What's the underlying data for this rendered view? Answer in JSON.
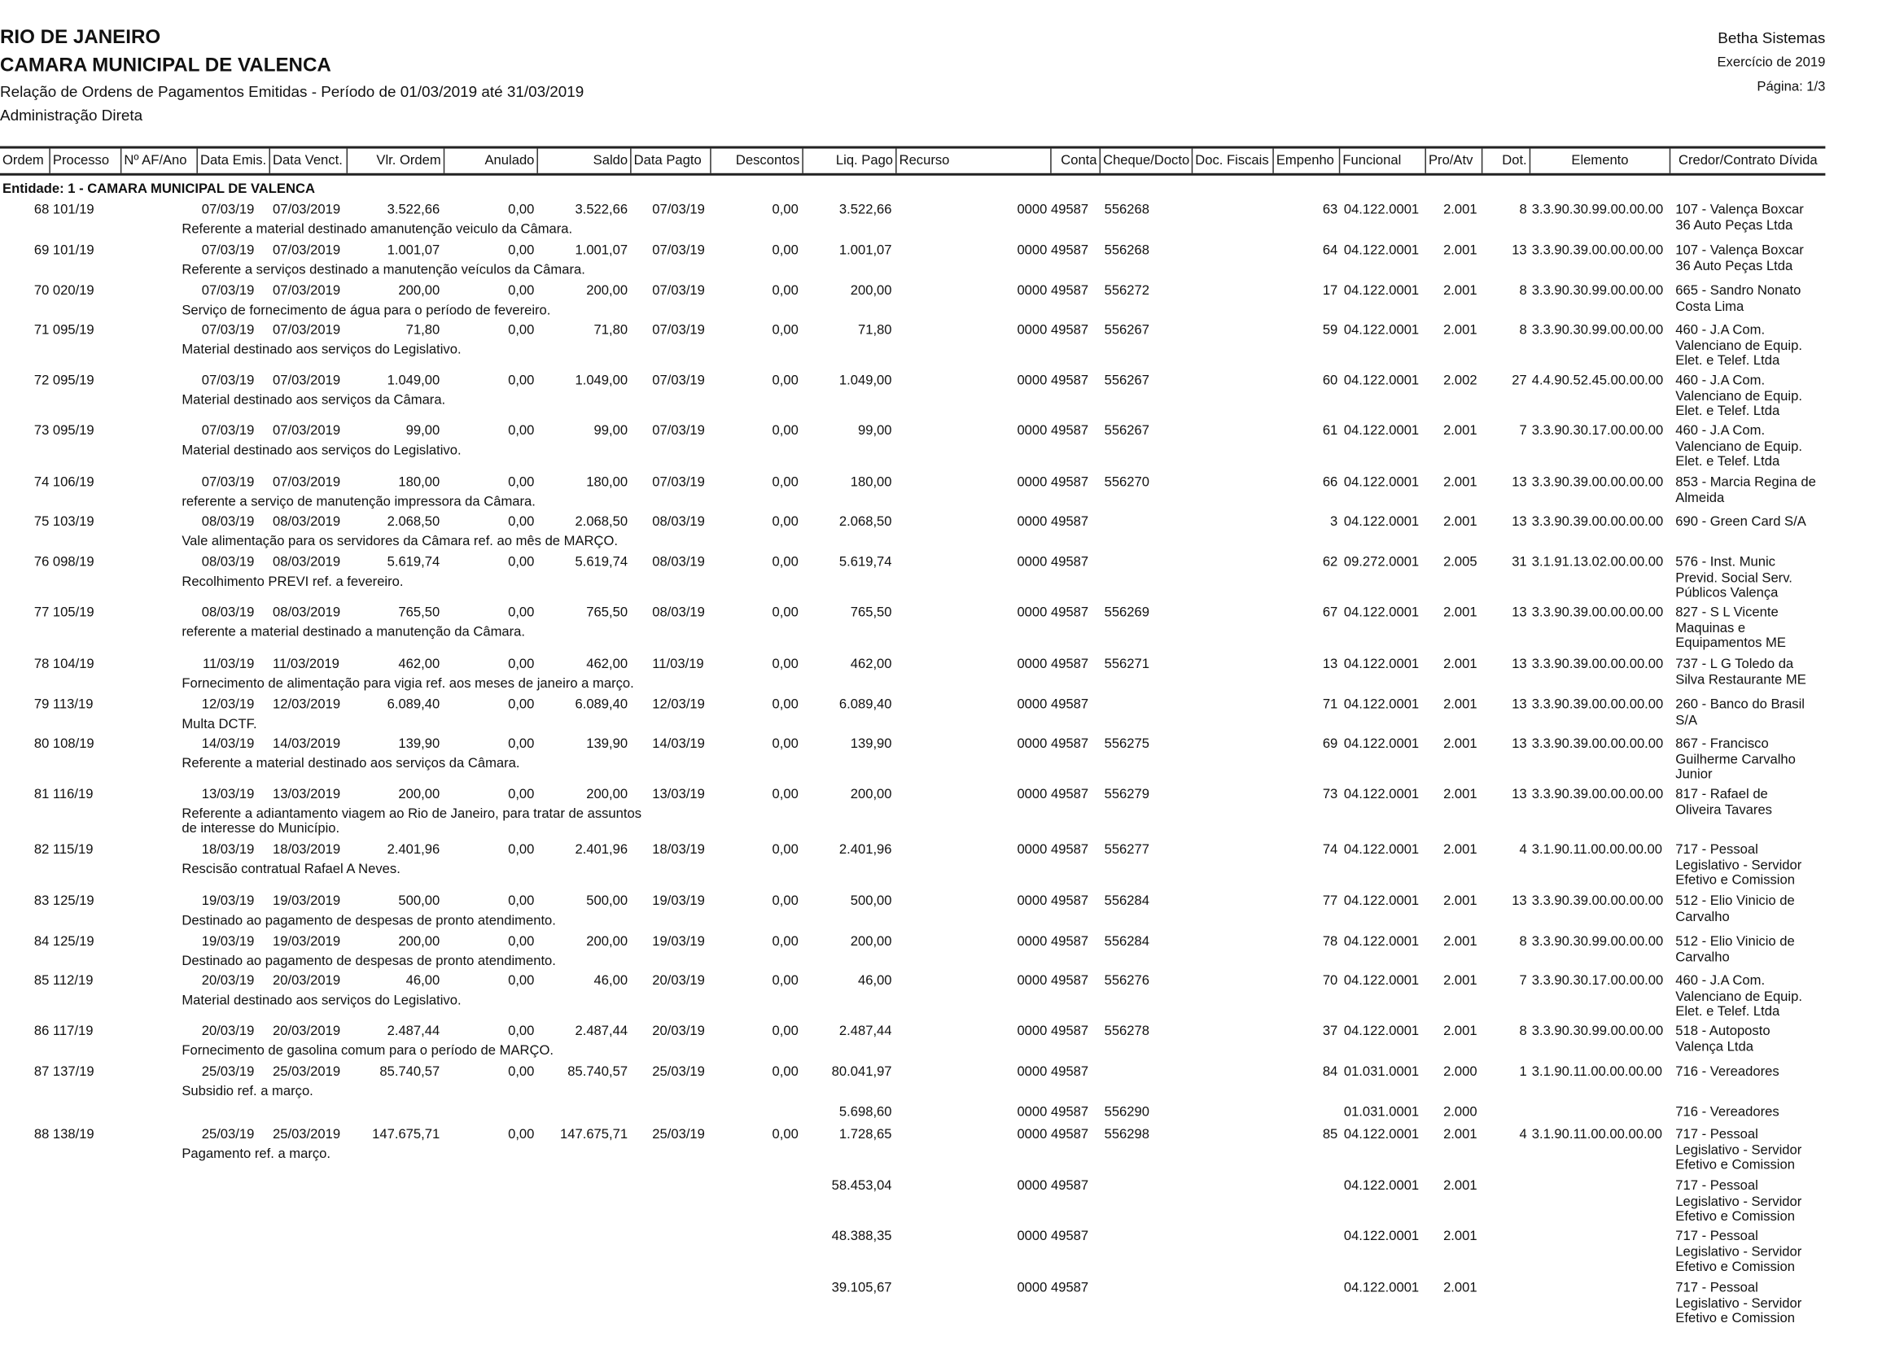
{
  "header": {
    "state": "RIO DE JANEIRO",
    "entity": "CAMARA MUNICIPAL DE VALENCA",
    "report_title": "Relação de Ordens de Pagamentos Emitidas - Período de 01/03/2019 até 31/03/2019",
    "administration": "Administração Direta",
    "system": "Betha Sistemas",
    "exercise": "Exercício de 2019",
    "page": "Página: 1/3"
  },
  "columns": [
    "Ordem",
    "Processo",
    "Nº AF/Ano",
    "Data Emis.",
    "Data Venct.",
    "Vlr. Ordem",
    "Anulado",
    "Saldo",
    "Data Pagto",
    "Descontos",
    "Liq. Pago",
    "Recurso",
    "Conta",
    "Cheque/Docto",
    "Doc. Fiscais",
    "Empenho",
    "Funcional",
    "Pro/Atv",
    "Dot.",
    "Elemento",
    "Credor/Contrato Dívida"
  ],
  "entity_group": "Entidade: 1 - CAMARA MUNICIPAL DE VALENCA",
  "rows": [
    {
      "ordem": "68",
      "processo": "101/19",
      "data_emis": "07/03/19",
      "data_venc": "07/03/2019",
      "vlr_ordem": "3.522,66",
      "anulado": "0,00",
      "saldo": "3.522,66",
      "data_pagto": "07/03/19",
      "descontos": "0,00",
      "liq_pago": "3.522,66",
      "conta": "0000 49587",
      "cheque": "556268",
      "empenho": "63",
      "funcional": "04.122.0001",
      "pro_atv": "2.001",
      "dot": "8",
      "elemento": "3.3.90.30.99.00.00.00",
      "credor": [
        "107 - Valença Boxcar",
        "36 Auto Peças Ltda"
      ],
      "desc": [
        "Referente a material destinado amanutenção veiculo da Câmara."
      ]
    },
    {
      "ordem": "69",
      "processo": "101/19",
      "data_emis": "07/03/19",
      "data_venc": "07/03/2019",
      "vlr_ordem": "1.001,07",
      "anulado": "0,00",
      "saldo": "1.001,07",
      "data_pagto": "07/03/19",
      "descontos": "0,00",
      "liq_pago": "1.001,07",
      "conta": "0000 49587",
      "cheque": "556268",
      "empenho": "64",
      "funcional": "04.122.0001",
      "pro_atv": "2.001",
      "dot": "13",
      "elemento": "3.3.90.39.00.00.00.00",
      "credor": [
        "107 - Valença Boxcar",
        "36 Auto Peças Ltda"
      ],
      "desc": [
        "Referente a serviços destinado a manutenção veículos da Câmara."
      ]
    },
    {
      "ordem": "70",
      "processo": "020/19",
      "data_emis": "07/03/19",
      "data_venc": "07/03/2019",
      "vlr_ordem": "200,00",
      "anulado": "0,00",
      "saldo": "200,00",
      "data_pagto": "07/03/19",
      "descontos": "0,00",
      "liq_pago": "200,00",
      "conta": "0000 49587",
      "cheque": "556272",
      "empenho": "17",
      "funcional": "04.122.0001",
      "pro_atv": "2.001",
      "dot": "8",
      "elemento": "3.3.90.30.99.00.00.00",
      "credor": [
        "665 - Sandro Nonato",
        "Costa Lima"
      ],
      "desc": [
        "Serviço de fornecimento de água para o período de fevereiro."
      ]
    },
    {
      "ordem": "71",
      "processo": "095/19",
      "data_emis": "07/03/19",
      "data_venc": "07/03/2019",
      "vlr_ordem": "71,80",
      "anulado": "0,00",
      "saldo": "71,80",
      "data_pagto": "07/03/19",
      "descontos": "0,00",
      "liq_pago": "71,80",
      "conta": "0000 49587",
      "cheque": "556267",
      "empenho": "59",
      "funcional": "04.122.0001",
      "pro_atv": "2.001",
      "dot": "8",
      "elemento": "3.3.90.30.99.00.00.00",
      "credor": [
        "460 - J.A Com.",
        "Valenciano de Equip.",
        "Elet. e Telef. Ltda"
      ],
      "desc": [
        "Material destinado aos serviços do Legislativo."
      ]
    },
    {
      "ordem": "72",
      "processo": "095/19",
      "data_emis": "07/03/19",
      "data_venc": "07/03/2019",
      "vlr_ordem": "1.049,00",
      "anulado": "0,00",
      "saldo": "1.049,00",
      "data_pagto": "07/03/19",
      "descontos": "0,00",
      "liq_pago": "1.049,00",
      "conta": "0000 49587",
      "cheque": "556267",
      "empenho": "60",
      "funcional": "04.122.0001",
      "pro_atv": "2.002",
      "dot": "27",
      "elemento": "4.4.90.52.45.00.00.00",
      "credor": [
        "460 - J.A Com.",
        "Valenciano de Equip.",
        "Elet. e Telef. Ltda"
      ],
      "desc": [
        "Material destinado aos serviços da Câmara."
      ]
    },
    {
      "ordem": "73",
      "processo": "095/19",
      "data_emis": "07/03/19",
      "data_venc": "07/03/2019",
      "vlr_ordem": "99,00",
      "anulado": "0,00",
      "saldo": "99,00",
      "data_pagto": "07/03/19",
      "descontos": "0,00",
      "liq_pago": "99,00",
      "conta": "0000 49587",
      "cheque": "556267",
      "empenho": "61",
      "funcional": "04.122.0001",
      "pro_atv": "2.001",
      "dot": "7",
      "elemento": "3.3.90.30.17.00.00.00",
      "credor": [
        "460 - J.A Com.",
        "Valenciano de Equip.",
        "Elet. e Telef. Ltda"
      ],
      "desc": [
        "Material destinado aos serviços do Legislativo."
      ]
    },
    {
      "ordem": "74",
      "processo": "106/19",
      "data_emis": "07/03/19",
      "data_venc": "07/03/2019",
      "vlr_ordem": "180,00",
      "anulado": "0,00",
      "saldo": "180,00",
      "data_pagto": "07/03/19",
      "descontos": "0,00",
      "liq_pago": "180,00",
      "conta": "0000 49587",
      "cheque": "556270",
      "empenho": "66",
      "funcional": "04.122.0001",
      "pro_atv": "2.001",
      "dot": "13",
      "elemento": "3.3.90.39.00.00.00.00",
      "credor": [
        "853 - Marcia Regina de",
        "Almeida"
      ],
      "desc": [
        "referente a serviço de manutenção impressora da Câmara."
      ]
    },
    {
      "ordem": "75",
      "processo": "103/19",
      "data_emis": "08/03/19",
      "data_venc": "08/03/2019",
      "vlr_ordem": "2.068,50",
      "anulado": "0,00",
      "saldo": "2.068,50",
      "data_pagto": "08/03/19",
      "descontos": "0,00",
      "liq_pago": "2.068,50",
      "conta": "0000 49587",
      "cheque": "",
      "empenho": "3",
      "funcional": "04.122.0001",
      "pro_atv": "2.001",
      "dot": "13",
      "elemento": "3.3.90.39.00.00.00.00",
      "credor": [
        "690 - Green Card S/A"
      ],
      "desc": [
        "Vale alimentação para os servidores da Câmara ref. ao mês de MARÇO."
      ]
    },
    {
      "ordem": "76",
      "processo": "098/19",
      "data_emis": "08/03/19",
      "data_venc": "08/03/2019",
      "vlr_ordem": "5.619,74",
      "anulado": "0,00",
      "saldo": "5.619,74",
      "data_pagto": "08/03/19",
      "descontos": "0,00",
      "liq_pago": "5.619,74",
      "conta": "0000 49587",
      "cheque": "",
      "empenho": "62",
      "funcional": "09.272.0001",
      "pro_atv": "2.005",
      "dot": "31",
      "elemento": "3.1.91.13.02.00.00.00",
      "credor": [
        "576 - Inst. Munic",
        "Previd. Social Serv.",
        "Públicos Valença"
      ],
      "desc": [
        "Recolhimento PREVI ref. a fevereiro."
      ]
    },
    {
      "ordem": "77",
      "processo": "105/19",
      "data_emis": "08/03/19",
      "data_venc": "08/03/2019",
      "vlr_ordem": "765,50",
      "anulado": "0,00",
      "saldo": "765,50",
      "data_pagto": "08/03/19",
      "descontos": "0,00",
      "liq_pago": "765,50",
      "conta": "0000 49587",
      "cheque": "556269",
      "empenho": "67",
      "funcional": "04.122.0001",
      "pro_atv": "2.001",
      "dot": "13",
      "elemento": "3.3.90.39.00.00.00.00",
      "credor": [
        "827 - S L Vicente",
        "Maquinas e",
        "Equipamentos ME"
      ],
      "desc": [
        "referente a material destinado a manutenção da Câmara."
      ]
    },
    {
      "ordem": "78",
      "processo": "104/19",
      "data_emis": "11/03/19",
      "data_venc": "11/03/2019",
      "vlr_ordem": "462,00",
      "anulado": "0,00",
      "saldo": "462,00",
      "data_pagto": "11/03/19",
      "descontos": "0,00",
      "liq_pago": "462,00",
      "conta": "0000 49587",
      "cheque": "556271",
      "empenho": "13",
      "funcional": "04.122.0001",
      "pro_atv": "2.001",
      "dot": "13",
      "elemento": "3.3.90.39.00.00.00.00",
      "credor": [
        "737 - L G Toledo da",
        "Silva Restaurante ME"
      ],
      "desc": [
        "Fornecimento de alimentação para vigia ref. aos meses de janeiro a março."
      ]
    },
    {
      "ordem": "79",
      "processo": "113/19",
      "data_emis": "12/03/19",
      "data_venc": "12/03/2019",
      "vlr_ordem": "6.089,40",
      "anulado": "0,00",
      "saldo": "6.089,40",
      "data_pagto": "12/03/19",
      "descontos": "0,00",
      "liq_pago": "6.089,40",
      "conta": "0000 49587",
      "cheque": "",
      "empenho": "71",
      "funcional": "04.122.0001",
      "pro_atv": "2.001",
      "dot": "13",
      "elemento": "3.3.90.39.00.00.00.00",
      "credor": [
        "260 - Banco do Brasil",
        "S/A"
      ],
      "desc": [
        "Multa DCTF."
      ]
    },
    {
      "ordem": "80",
      "processo": "108/19",
      "data_emis": "14/03/19",
      "data_venc": "14/03/2019",
      "vlr_ordem": "139,90",
      "anulado": "0,00",
      "saldo": "139,90",
      "data_pagto": "14/03/19",
      "descontos": "0,00",
      "liq_pago": "139,90",
      "conta": "0000 49587",
      "cheque": "556275",
      "empenho": "69",
      "funcional": "04.122.0001",
      "pro_atv": "2.001",
      "dot": "13",
      "elemento": "3.3.90.39.00.00.00.00",
      "credor": [
        "867 - Francisco",
        "Guilherme Carvalho",
        "Junior"
      ],
      "desc": [
        "Referente a material destinado aos serviços da Câmara."
      ]
    },
    {
      "ordem": "81",
      "processo": "116/19",
      "data_emis": "13/03/19",
      "data_venc": "13/03/2019",
      "vlr_ordem": "200,00",
      "anulado": "0,00",
      "saldo": "200,00",
      "data_pagto": "13/03/19",
      "descontos": "0,00",
      "liq_pago": "200,00",
      "conta": "0000 49587",
      "cheque": "556279",
      "empenho": "73",
      "funcional": "04.122.0001",
      "pro_atv": "2.001",
      "dot": "13",
      "elemento": "3.3.90.39.00.00.00.00",
      "credor": [
        "817 - Rafael de",
        "Oliveira Tavares"
      ],
      "desc": [
        "Referente a adiantamento viagem ao Rio de Janeiro, para tratar de assuntos",
        "de interesse do Município."
      ]
    },
    {
      "ordem": "82",
      "processo": "115/19",
      "data_emis": "18/03/19",
      "data_venc": "18/03/2019",
      "vlr_ordem": "2.401,96",
      "anulado": "0,00",
      "saldo": "2.401,96",
      "data_pagto": "18/03/19",
      "descontos": "0,00",
      "liq_pago": "2.401,96",
      "conta": "0000 49587",
      "cheque": "556277",
      "empenho": "74",
      "funcional": "04.122.0001",
      "pro_atv": "2.001",
      "dot": "4",
      "elemento": "3.1.90.11.00.00.00.00",
      "credor": [
        "717 - Pessoal",
        "Legislativo - Servidor",
        "Efetivo e Comission"
      ],
      "desc": [
        "Rescisão contratual Rafael A Neves."
      ]
    },
    {
      "ordem": "83",
      "processo": "125/19",
      "data_emis": "19/03/19",
      "data_venc": "19/03/2019",
      "vlr_ordem": "500,00",
      "anulado": "0,00",
      "saldo": "500,00",
      "data_pagto": "19/03/19",
      "descontos": "0,00",
      "liq_pago": "500,00",
      "conta": "0000 49587",
      "cheque": "556284",
      "empenho": "77",
      "funcional": "04.122.0001",
      "pro_atv": "2.001",
      "dot": "13",
      "elemento": "3.3.90.39.00.00.00.00",
      "credor": [
        "512 - Elio Vinicio de",
        "Carvalho"
      ],
      "desc": [
        "Destinado ao pagamento de despesas de pronto atendimento."
      ]
    },
    {
      "ordem": "84",
      "processo": "125/19",
      "data_emis": "19/03/19",
      "data_venc": "19/03/2019",
      "vlr_ordem": "200,00",
      "anulado": "0,00",
      "saldo": "200,00",
      "data_pagto": "19/03/19",
      "descontos": "0,00",
      "liq_pago": "200,00",
      "conta": "0000 49587",
      "cheque": "556284",
      "empenho": "78",
      "funcional": "04.122.0001",
      "pro_atv": "2.001",
      "dot": "8",
      "elemento": "3.3.90.30.99.00.00.00",
      "credor": [
        "512 - Elio Vinicio de",
        "Carvalho"
      ],
      "desc": [
        "Destinado ao pagamento de despesas de pronto atendimento."
      ]
    },
    {
      "ordem": "85",
      "processo": "112/19",
      "data_emis": "20/03/19",
      "data_venc": "20/03/2019",
      "vlr_ordem": "46,00",
      "anulado": "0,00",
      "saldo": "46,00",
      "data_pagto": "20/03/19",
      "descontos": "0,00",
      "liq_pago": "46,00",
      "conta": "0000 49587",
      "cheque": "556276",
      "empenho": "70",
      "funcional": "04.122.0001",
      "pro_atv": "2.001",
      "dot": "7",
      "elemento": "3.3.90.30.17.00.00.00",
      "credor": [
        "460 - J.A Com.",
        "Valenciano de Equip.",
        "Elet. e Telef. Ltda"
      ],
      "desc": [
        "Material destinado aos serviços do Legislativo."
      ]
    },
    {
      "ordem": "86",
      "processo": "117/19",
      "data_emis": "20/03/19",
      "data_venc": "20/03/2019",
      "vlr_ordem": "2.487,44",
      "anulado": "0,00",
      "saldo": "2.487,44",
      "data_pagto": "20/03/19",
      "descontos": "0,00",
      "liq_pago": "2.487,44",
      "conta": "0000 49587",
      "cheque": "556278",
      "empenho": "37",
      "funcional": "04.122.0001",
      "pro_atv": "2.001",
      "dot": "8",
      "elemento": "3.3.90.30.99.00.00.00",
      "credor": [
        "518 - Autoposto",
        "Valença Ltda"
      ],
      "desc": [
        "Fornecimento de gasolina comum para o período de MARÇO."
      ]
    },
    {
      "ordem": "87",
      "processo": "137/19",
      "data_emis": "25/03/19",
      "data_venc": "25/03/2019",
      "vlr_ordem": "85.740,57",
      "anulado": "0,00",
      "saldo": "85.740,57",
      "data_pagto": "25/03/19",
      "descontos": "0,00",
      "liq_pago": "80.041,97",
      "conta": "0000 49587",
      "cheque": "",
      "empenho": "84",
      "funcional": "01.031.0001",
      "pro_atv": "2.000",
      "dot": "1",
      "elemento": "3.1.90.11.00.00.00.00",
      "credor": [
        "716 - Vereadores"
      ],
      "desc": [
        "Subsidio ref. a março."
      ]
    },
    {
      "liq_pago": "5.698,60",
      "conta": "0000 49587",
      "cheque": "556290",
      "funcional": "01.031.0001",
      "pro_atv": "2.000",
      "credor": [
        "716 - Vereadores"
      ]
    },
    {
      "ordem": "88",
      "processo": "138/19",
      "data_emis": "25/03/19",
      "data_venc": "25/03/2019",
      "vlr_ordem": "147.675,71",
      "anulado": "0,00",
      "saldo": "147.675,71",
      "data_pagto": "25/03/19",
      "descontos": "0,00",
      "liq_pago": "1.728,65",
      "conta": "0000 49587",
      "cheque": "556298",
      "empenho": "85",
      "funcional": "04.122.0001",
      "pro_atv": "2.001",
      "dot": "4",
      "elemento": "3.1.90.11.00.00.00.00",
      "credor": [
        "717 - Pessoal",
        "Legislativo - Servidor",
        "Efetivo e Comission"
      ],
      "desc": [
        "Pagamento ref. a março."
      ]
    },
    {
      "liq_pago": "58.453,04",
      "conta": "0000 49587",
      "funcional": "04.122.0001",
      "pro_atv": "2.001",
      "credor": [
        "717 - Pessoal",
        "Legislativo - Servidor",
        "Efetivo e Comission"
      ]
    },
    {
      "liq_pago": "48.388,35",
      "conta": "0000 49587",
      "funcional": "04.122.0001",
      "pro_atv": "2.001",
      "credor": [
        "717 - Pessoal",
        "Legislativo - Servidor",
        "Efetivo e Comission"
      ]
    },
    {
      "liq_pago": "39.105,67",
      "conta": "0000 49587",
      "funcional": "04.122.0001",
      "pro_atv": "2.001",
      "credor": [
        "717 - Pessoal",
        "Legislativo - Servidor",
        "Efetivo e Comission"
      ]
    }
  ]
}
